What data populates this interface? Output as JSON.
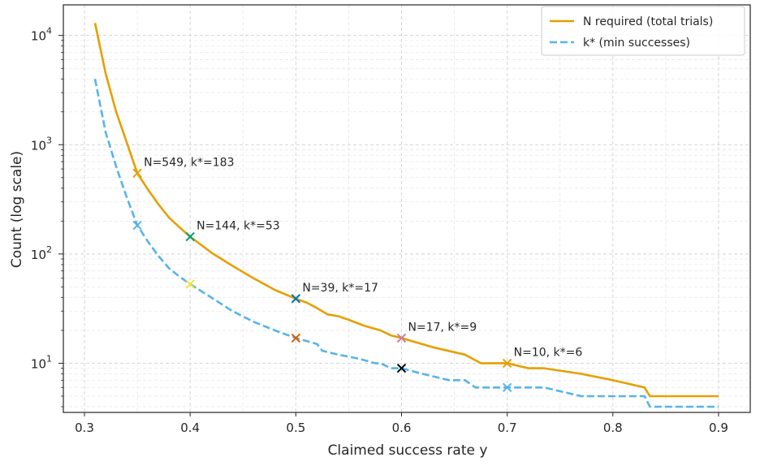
{
  "chart_data": {
    "type": "line",
    "title": "",
    "xlabel": "Claimed success rate y",
    "ylabel": "Count (log scale)",
    "xlim": [
      0.28,
      0.93
    ],
    "ylim_log10": [
      0.55,
      4.28
    ],
    "yscale": "log",
    "grid": true,
    "legend_placement": "top-right",
    "x_ticks": [
      {
        "value": 0.3,
        "label": "0.3"
      },
      {
        "value": 0.4,
        "label": "0.4"
      },
      {
        "value": 0.5,
        "label": "0.5"
      },
      {
        "value": 0.6,
        "label": "0.6"
      },
      {
        "value": 0.7,
        "label": "0.7"
      },
      {
        "value": 0.8,
        "label": "0.8"
      },
      {
        "value": 0.9,
        "label": "0.9"
      }
    ],
    "y_ticks": [
      {
        "value": 10,
        "base": "10",
        "exp": "1"
      },
      {
        "value": 100,
        "base": "10",
        "exp": "2"
      },
      {
        "value": 1000,
        "base": "10",
        "exp": "3"
      },
      {
        "value": 10000,
        "base": "10",
        "exp": "4"
      }
    ],
    "series": [
      {
        "name": "N required (total trials)",
        "color": "#E69F00",
        "style": "solid",
        "x": [
          0.31,
          0.32,
          0.33,
          0.34,
          0.35,
          0.36,
          0.37,
          0.38,
          0.39,
          0.4,
          0.42,
          0.44,
          0.46,
          0.48,
          0.5,
          0.51,
          0.52,
          0.53,
          0.54,
          0.55,
          0.565,
          0.58,
          0.59,
          0.6,
          0.63,
          0.66,
          0.675,
          0.7,
          0.72,
          0.735,
          0.77,
          0.8,
          0.83,
          0.835,
          0.9
        ],
        "values": [
          13000,
          4500,
          2000,
          1050,
          549,
          390,
          285,
          215,
          175,
          144,
          103,
          78,
          60,
          47,
          39,
          36,
          32,
          28,
          27,
          25,
          22,
          20,
          18,
          17,
          14,
          12,
          10,
          10,
          9,
          9,
          8,
          7,
          6,
          5,
          5
        ]
      },
      {
        "name": "k* (min successes)",
        "color": "#56B4E9",
        "style": "dashed",
        "x": [
          0.31,
          0.32,
          0.33,
          0.34,
          0.35,
          0.36,
          0.37,
          0.38,
          0.39,
          0.4,
          0.42,
          0.44,
          0.46,
          0.48,
          0.5,
          0.51,
          0.52,
          0.525,
          0.54,
          0.56,
          0.575,
          0.58,
          0.59,
          0.6,
          0.62,
          0.645,
          0.66,
          0.67,
          0.7,
          0.735,
          0.77,
          0.8,
          0.83,
          0.835,
          0.9
        ],
        "values": [
          4000,
          1300,
          630,
          330,
          183,
          130,
          96,
          74,
          62,
          53,
          40,
          30,
          24,
          20,
          17,
          16,
          15,
          13,
          12,
          11,
          10,
          10,
          9,
          9,
          8,
          7,
          7,
          6,
          6,
          6,
          5,
          5,
          5,
          4,
          4
        ]
      }
    ],
    "markers": [
      {
        "x": 0.35,
        "y": 549,
        "color": "#E69F00"
      },
      {
        "x": 0.35,
        "y": 183,
        "color": "#56B4E9"
      },
      {
        "x": 0.4,
        "y": 144,
        "color": "#009E73"
      },
      {
        "x": 0.4,
        "y": 53,
        "color": "#F0E442"
      },
      {
        "x": 0.5,
        "y": 39,
        "color": "#0072B2"
      },
      {
        "x": 0.5,
        "y": 17,
        "color": "#D55E00"
      },
      {
        "x": 0.6,
        "y": 17,
        "color": "#CC79A7"
      },
      {
        "x": 0.6,
        "y": 9,
        "color": "#000000"
      },
      {
        "x": 0.7,
        "y": 10,
        "color": "#E69F00"
      },
      {
        "x": 0.7,
        "y": 6,
        "color": "#56B4E9"
      }
    ],
    "annotations": [
      {
        "x": 0.35,
        "y": 549,
        "text": "N=549, k*=183"
      },
      {
        "x": 0.4,
        "y": 144,
        "text": "N=144, k*=53"
      },
      {
        "x": 0.5,
        "y": 39,
        "text": "N=39, k*=17"
      },
      {
        "x": 0.6,
        "y": 17,
        "text": "N=17, k*=9"
      },
      {
        "x": 0.7,
        "y": 10,
        "text": "N=10, k*=6"
      }
    ]
  }
}
